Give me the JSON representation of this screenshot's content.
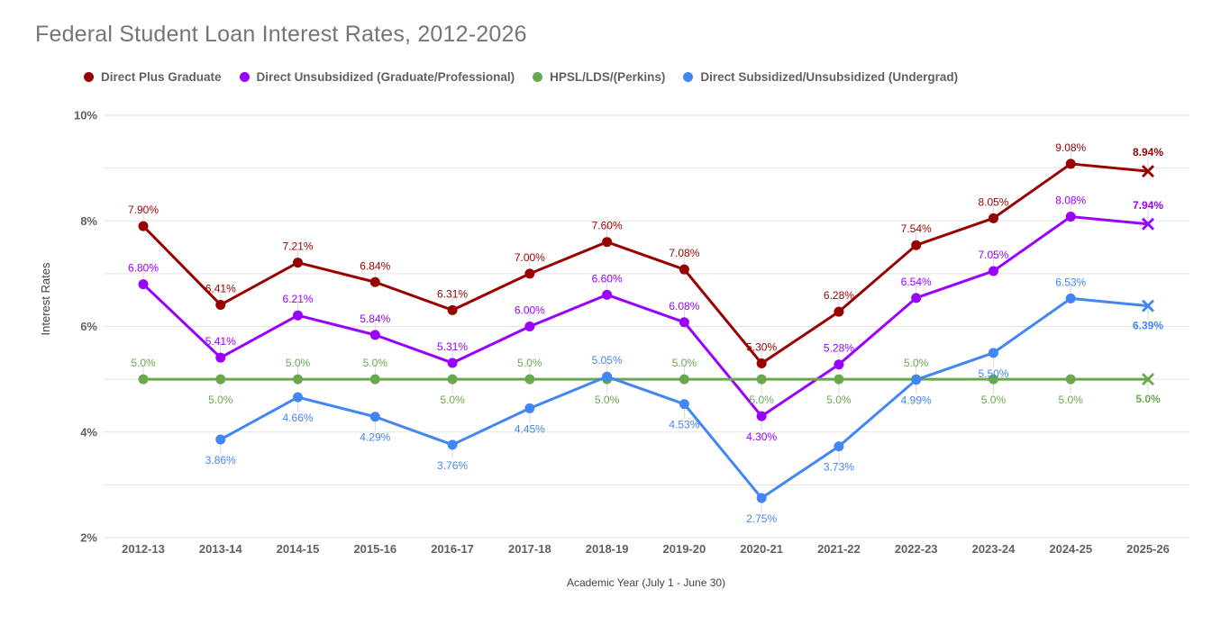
{
  "title": "Federal Student Loan Interest Rates, 2012-2026",
  "colors": {
    "background": "#ffffff",
    "title_text": "#757575",
    "tick_text": "#616161",
    "axis_title_text": "#424242",
    "grid": "#e3e3e3",
    "leader": "#d9d9d9"
  },
  "chart_data": {
    "type": "line",
    "title": "Federal Student Loan Interest Rates, 2012-2026",
    "xlabel": "Academic Year (July 1 - June 30)",
    "ylabel": "Interest Rates",
    "ylim": [
      2,
      10
    ],
    "grid_step": 1,
    "ytick_values": [
      2,
      4,
      6,
      8,
      10
    ],
    "ytick_labels": [
      "2%",
      "4%",
      "6%",
      "8%",
      "10%"
    ],
    "legend_position": "top",
    "last_point_marker": "x",
    "last_point_label_bold": true,
    "categories": [
      "2012-13",
      "2013-14",
      "2014-15",
      "2015-16",
      "2016-17",
      "2017-18",
      "2018-19",
      "2019-20",
      "2020-21",
      "2021-22",
      "2022-23",
      "2023-24",
      "2024-25",
      "2025-26"
    ],
    "series": [
      {
        "name": "Direct Plus Graduate",
        "color": "#990000",
        "values": [
          7.9,
          6.41,
          7.21,
          6.84,
          6.31,
          7.0,
          7.6,
          7.08,
          5.3,
          6.28,
          7.54,
          8.05,
          9.08,
          8.94
        ],
        "labels": [
          "7.90%",
          "6.41%",
          "7.21%",
          "6.84%",
          "6.31%",
          "7.00%",
          "7.60%",
          "7.08%",
          "5.30%",
          "6.28%",
          "7.54%",
          "8.05%",
          "9.08%",
          "8.94%"
        ],
        "label_side": [
          "above",
          "above",
          "above",
          "above",
          "above",
          "above",
          "above",
          "above",
          "above",
          "above",
          "above",
          "above",
          "above",
          "above"
        ]
      },
      {
        "name": "Direct Unsubsidized (Graduate/Professional)",
        "color": "#9900ff",
        "values": [
          6.8,
          5.41,
          6.21,
          5.84,
          5.31,
          6.0,
          6.6,
          6.08,
          4.3,
          5.28,
          6.54,
          7.05,
          8.08,
          7.94
        ],
        "labels": [
          "6.80%",
          "5.41%",
          "6.21%",
          "5.84%",
          "5.31%",
          "6.00%",
          "6.60%",
          "6.08%",
          "4.30%",
          "5.28%",
          "6.54%",
          "7.05%",
          "8.08%",
          "7.94%"
        ],
        "label_side": [
          "above",
          "above",
          "above",
          "above",
          "above",
          "above",
          "above",
          "above",
          "below",
          "above",
          "above",
          "above",
          "above",
          "above"
        ]
      },
      {
        "name": "HPSL/LDS/(Perkins)",
        "color": "#6aa84f",
        "values": [
          5.0,
          5.0,
          5.0,
          5.0,
          5.0,
          5.0,
          5.0,
          5.0,
          5.0,
          5.0,
          5.0,
          5.0,
          5.0,
          5.0
        ],
        "labels": [
          "5.0%",
          "5.0%",
          "5.0%",
          "5.0%",
          "5.0%",
          "5.0%",
          "5.0%",
          "5.0%",
          "5.0%",
          "5.0%",
          "5.0%",
          "5.0%",
          "5.0%",
          "5.0%"
        ],
        "label_side": [
          "above",
          "below",
          "above",
          "above",
          "below",
          "above",
          "below",
          "above",
          "below",
          "below",
          "above",
          "below",
          "below",
          "below"
        ]
      },
      {
        "name": "Direct Subsidized/Unsubsidized (Undergrad)",
        "color": "#4285f4",
        "values": [
          null,
          3.86,
          4.66,
          4.29,
          3.76,
          4.45,
          5.05,
          4.53,
          2.75,
          3.73,
          4.99,
          5.5,
          6.53,
          6.39
        ],
        "labels": [
          null,
          "3.86%",
          "4.66%",
          "4.29%",
          "3.76%",
          "4.45%",
          "5.05%",
          "4.53%",
          "2.75%",
          "3.73%",
          "4.99%",
          "5.50%",
          "6.53%",
          "6.39%"
        ],
        "label_side": [
          null,
          "below",
          "below",
          "below",
          "below",
          "below",
          "above",
          "below",
          "below",
          "below",
          "below",
          "below",
          "above",
          "below"
        ]
      }
    ]
  }
}
